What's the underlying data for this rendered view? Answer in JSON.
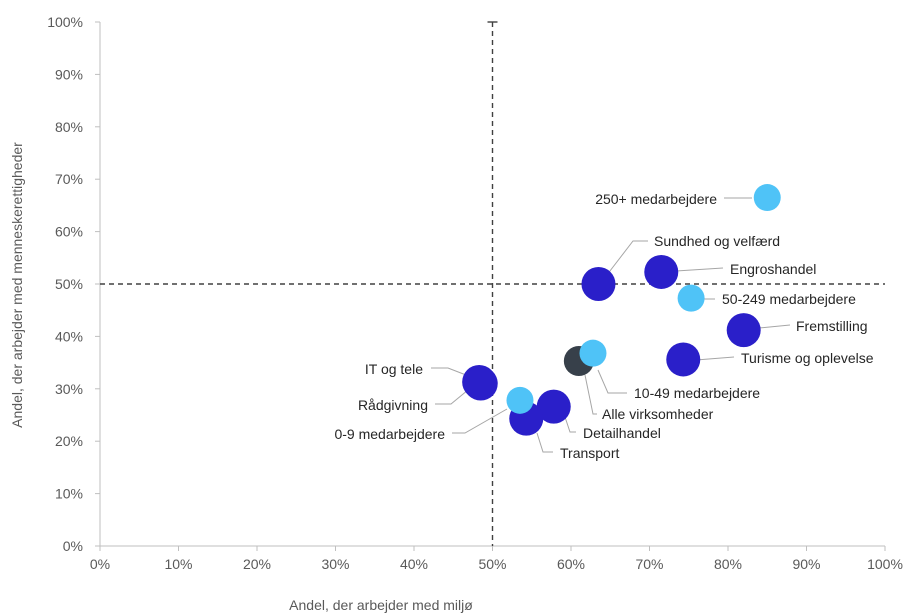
{
  "chart_data": {
    "type": "scatter",
    "xlabel": "Andel, der arbejder med miljø",
    "ylabel": "Andel, der arbejder med menneskerettigheder",
    "xlim": [
      0,
      100
    ],
    "ylim": [
      0,
      100
    ],
    "x_ticks": [
      "0%",
      "10%",
      "20%",
      "30%",
      "40%",
      "50%",
      "60%",
      "70%",
      "80%",
      "90%",
      "100%"
    ],
    "y_ticks": [
      "0%",
      "10%",
      "20%",
      "30%",
      "40%",
      "50%",
      "60%",
      "70%",
      "80%",
      "90%",
      "100%"
    ],
    "reference_lines": {
      "x": 50,
      "y": 50,
      "style": "dashed"
    },
    "grid": false,
    "colors": {
      "industry": "#2a1fc9",
      "size": "#4fc3f7",
      "total": "#37404a"
    },
    "points": [
      {
        "label": "250+ medarbejdere",
        "x": 85,
        "y": 66.5,
        "group": "size"
      },
      {
        "label": "Sundhed og velfærd",
        "x": 63.5,
        "y": 50,
        "group": "industry"
      },
      {
        "label": "Engroshandel",
        "x": 71.5,
        "y": 52.3,
        "group": "industry"
      },
      {
        "label": "50-249 medarbejdere",
        "x": 75.3,
        "y": 47.3,
        "group": "size"
      },
      {
        "label": "Fremstilling",
        "x": 82,
        "y": 41.2,
        "group": "industry"
      },
      {
        "label": "Turisme og oplevelse",
        "x": 74.3,
        "y": 35.6,
        "group": "industry"
      },
      {
        "label": "10-49 medarbejdere",
        "x": 62.8,
        "y": 36.8,
        "group": "size"
      },
      {
        "label": "Alle virksomheder",
        "x": 61,
        "y": 35.3,
        "group": "total"
      },
      {
        "label": "IT og tele",
        "x": 48.3,
        "y": 31.3,
        "group": "industry"
      },
      {
        "label": "Rådgivning",
        "x": 48.5,
        "y": 31,
        "group": "industry"
      },
      {
        "label": "0-9 medarbejdere",
        "x": 53.5,
        "y": 27.8,
        "group": "size"
      },
      {
        "label": "Detailhandel",
        "x": 57.8,
        "y": 26.6,
        "group": "industry"
      },
      {
        "label": "Transport",
        "x": 54.3,
        "y": 24.3,
        "group": "industry"
      }
    ]
  }
}
